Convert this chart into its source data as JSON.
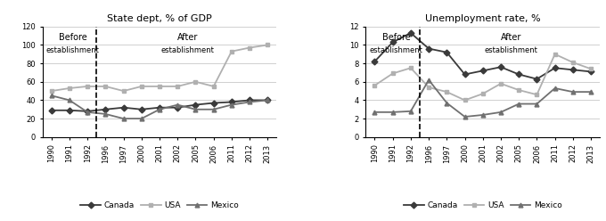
{
  "years": [
    1990,
    1991,
    1992,
    1996,
    1997,
    2000,
    2001,
    2002,
    2005,
    2006,
    2011,
    2012,
    2013
  ],
  "chart1": {
    "title": "State dept, % of GDP",
    "ylim": [
      0,
      120
    ],
    "yticks": [
      0,
      20,
      40,
      60,
      80,
      100,
      120
    ],
    "canada": [
      29,
      29,
      28,
      30,
      32,
      30,
      32,
      32,
      35,
      37,
      38,
      40,
      40
    ],
    "usa": [
      50,
      53,
      55,
      55,
      50,
      55,
      55,
      55,
      60,
      55,
      93,
      97,
      100
    ],
    "mexico": [
      45,
      40,
      27,
      25,
      20,
      20,
      30,
      35,
      30,
      30,
      35,
      38,
      40
    ]
  },
  "chart2": {
    "title": "Unemployment rate, %",
    "ylim": [
      0,
      12
    ],
    "yticks": [
      0,
      2,
      4,
      6,
      8,
      10,
      12
    ],
    "canada": [
      8.2,
      10.3,
      11.3,
      9.6,
      9.2,
      6.8,
      7.2,
      7.6,
      6.8,
      6.3,
      7.5,
      7.3,
      7.1
    ],
    "usa": [
      5.6,
      6.9,
      7.5,
      5.4,
      4.9,
      4.0,
      4.7,
      5.8,
      5.1,
      4.6,
      9.0,
      8.1,
      7.4
    ],
    "mexico": [
      2.7,
      2.7,
      2.8,
      6.2,
      3.7,
      2.2,
      2.4,
      2.7,
      3.6,
      3.6,
      5.3,
      4.9,
      4.9
    ]
  },
  "colors": {
    "canada": "#3a3a3a",
    "usa": "#b0b0b0",
    "mexico": "#707070"
  },
  "before_label": "Before",
  "after_label": "After",
  "establishment_label": "establishment",
  "year_labels": [
    "1990",
    "1991",
    "1992",
    "1996",
    "1997",
    "2000",
    "2001",
    "2002",
    "2005",
    "2006",
    "2011",
    "2012",
    "2013"
  ],
  "bg_color": "#ffffff",
  "grid_color": "#d0d0d0"
}
